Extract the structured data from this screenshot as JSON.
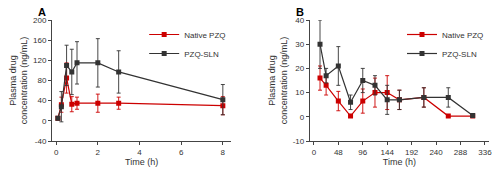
{
  "chart_data": [
    {
      "type": "line",
      "title": "A",
      "xlabel": "Time (h)",
      "ylabel": "Plasma drug\nconcentration (ng/mL)",
      "x": [
        0.083,
        0.25,
        0.5,
        0.75,
        1.0,
        2.0,
        3.0,
        8.0
      ],
      "series": [
        {
          "name": "Native PZQ",
          "color": "#CC0000",
          "values": [
            5,
            32,
            85,
            33,
            35,
            35,
            35,
            30
          ],
          "yerr": [
            3,
            15,
            30,
            15,
            12,
            18,
            12,
            18
          ]
        },
        {
          "name": "PZQ-SLN",
          "color": "#333333",
          "values": [
            5,
            28,
            110,
            97,
            115,
            115,
            97,
            42
          ],
          "yerr": [
            3,
            30,
            40,
            45,
            42,
            48,
            42,
            30
          ]
        }
      ],
      "xlim": [
        -0.2,
        8.4
      ],
      "xticks": [
        0,
        2,
        4,
        6,
        8
      ],
      "ylim": [
        -40,
        200
      ],
      "yticks": [
        -40,
        0,
        40,
        80,
        120,
        160,
        200
      ],
      "marker": "square",
      "grid": false,
      "legend": "upper right"
    },
    {
      "type": "line",
      "title": "B",
      "xlabel": "Time (h)",
      "ylabel": "Plasma drug\nconcentration (ng/mL)",
      "x": [
        12,
        24,
        48,
        72,
        96,
        120,
        144,
        168,
        216,
        264,
        312
      ],
      "series": [
        {
          "name": "Native PZQ",
          "color": "#CC0000",
          "values": [
            16,
            13,
            6.5,
            0.3,
            6.5,
            10,
            10,
            7,
            8,
            0.3,
            0.3
          ],
          "yerr": [
            5,
            4,
            4,
            0.5,
            5,
            6,
            7,
            4,
            4,
            0.5,
            0.5
          ]
        },
        {
          "name": "PZQ-SLN",
          "color": "#333333",
          "values": [
            30,
            17,
            21,
            6,
            15,
            13,
            7,
            7,
            8,
            8,
            0.5
          ],
          "yerr": [
            10,
            3,
            8,
            3,
            5,
            4,
            6,
            4,
            4,
            4,
            0.5
          ]
        }
      ],
      "xlim": [
        -8,
        344
      ],
      "xticks": [
        0,
        48,
        96,
        144,
        192,
        240,
        288,
        336
      ],
      "ylim": [
        -10,
        40
      ],
      "yticks": [
        -10,
        0,
        10,
        20,
        30,
        40
      ],
      "marker": "square",
      "grid": false,
      "legend": "upper right"
    }
  ]
}
